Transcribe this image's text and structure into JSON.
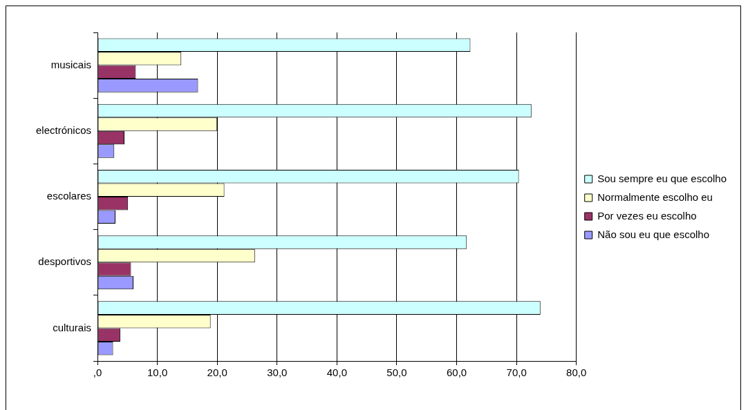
{
  "chart_data": {
    "type": "bar",
    "orientation": "horizontal",
    "categories": [
      "musicais",
      "electrónicos",
      "escolares",
      "desportivos",
      "culturais"
    ],
    "series": [
      {
        "name": "Sou sempre eu que escolho",
        "color": "#ccffff",
        "values": [
          62.3,
          72.5,
          70.4,
          61.7,
          74.0
        ]
      },
      {
        "name": "Normalmente escolho eu",
        "color": "#ffffcc",
        "values": [
          14.0,
          20.0,
          21.2,
          26.3,
          18.9
        ]
      },
      {
        "name": "Por vezes eu escolho",
        "color": "#993366",
        "values": [
          6.4,
          4.5,
          5.1,
          5.6,
          3.8
        ]
      },
      {
        "name": "Não sou eu que escolho",
        "color": "#9999ff",
        "values": [
          16.8,
          2.8,
          3.0,
          6.0,
          2.6
        ]
      }
    ],
    "xlim": [
      0,
      80
    ],
    "xticks": [
      {
        "value": 0,
        "label": ",0"
      },
      {
        "value": 10,
        "label": "10,0"
      },
      {
        "value": 20,
        "label": "20,0"
      },
      {
        "value": 30,
        "label": "30,0"
      },
      {
        "value": 40,
        "label": "40,0"
      },
      {
        "value": 50,
        "label": "50,0"
      },
      {
        "value": 60,
        "label": "60,0"
      },
      {
        "value": 70,
        "label": "70,0"
      },
      {
        "value": 80,
        "label": "80,0"
      }
    ],
    "grid": "x",
    "legend": "right"
  }
}
